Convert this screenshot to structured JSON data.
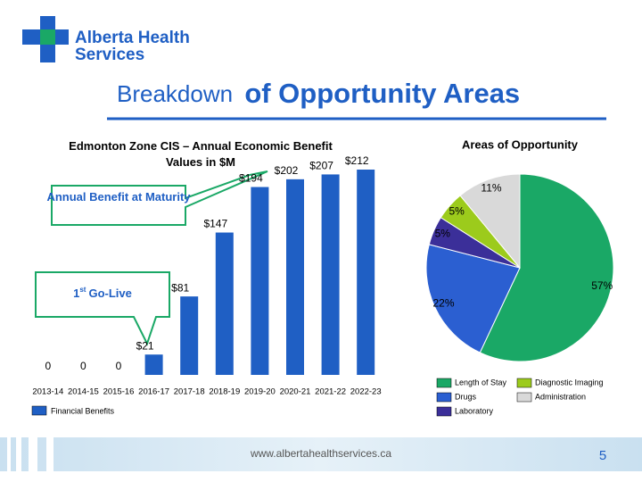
{
  "header": {
    "logo_line1": "Alberta Health",
    "logo_line2": "Services",
    "title_small": "Breakdown",
    "title_large": "of Opportunity Areas"
  },
  "chart_data": [
    {
      "type": "bar",
      "title": "Edmonton Zone CIS – Annual Economic Benefit Values in $M",
      "categories": [
        "2013-14",
        "2014-15",
        "2015-16",
        "2016-17",
        "2017-18",
        "2018-19",
        "2019-20",
        "2020-21",
        "2021-22",
        "2022-23"
      ],
      "series": [
        {
          "name": "Financial Benefits",
          "color": "#1f5fc4",
          "values": [
            0,
            0,
            0,
            21,
            81,
            147,
            194,
            202,
            207,
            212
          ],
          "value_labels": [
            "0",
            "0",
            "0",
            "$21",
            "$81",
            "$147",
            "$194",
            "$202",
            "$207",
            "$212"
          ]
        }
      ],
      "legend": "bottom-left"
    },
    {
      "type": "pie",
      "title": "Areas of Opportunity",
      "categories": [
        "Length of Stay",
        "Drugs",
        "Laboratory",
        "Diagnostic Imaging",
        "Administration"
      ],
      "values": [
        57,
        22,
        5,
        5,
        11
      ],
      "value_labels": [
        "57%",
        "22%",
        "5%",
        "5%",
        "11%"
      ],
      "colors": [
        "#1aa866",
        "#2b5fd1",
        "#3b2f99",
        "#9ccb1c",
        "#d9d9d9"
      ],
      "legend": "bottom"
    }
  ],
  "callouts": {
    "maturity": "Annual Benefit at Maturity",
    "golive_number": "1",
    "golive_suffix": "st",
    "golive_text": "Go-Live"
  },
  "footer": {
    "url": "www.albertahealthservices.ca",
    "page": "5"
  }
}
